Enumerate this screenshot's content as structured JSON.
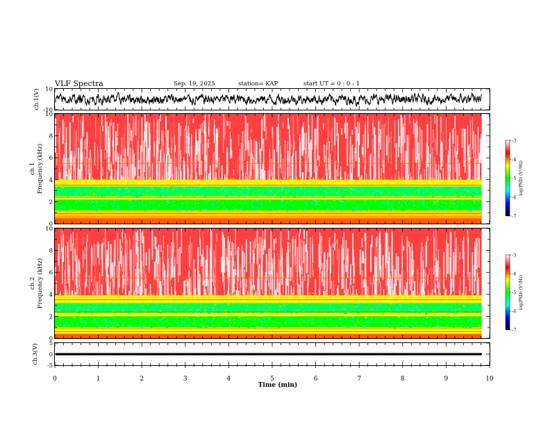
{
  "header": {
    "title": "VLF Spectra",
    "date": "Sep. 19, 2025",
    "station": "station= KAP",
    "start": "start  UT  =   0 : 0  : 1"
  },
  "chart_data": [
    {
      "type": "line",
      "name": "ch1-waveform",
      "ylabel": "ch.1(V)",
      "ylim": [
        -10,
        10
      ],
      "yticks": [
        {
          "v": 10,
          "label": "10"
        },
        {
          "v": -10,
          "label": "-10"
        }
      ],
      "xlim": [
        0,
        10
      ],
      "trace": {
        "center": 0.0,
        "amplitude": 5.0,
        "x_end_min": 9.82
      },
      "color": "#000000"
    },
    {
      "type": "heatmap",
      "name": "ch1-spectrogram",
      "ylabel": "ch.1\nFrequency (kHz)",
      "ylabel_lines": [
        "ch.1",
        "Frequency (kHz)"
      ],
      "ylim": [
        0,
        10
      ],
      "yticks": [
        0,
        2,
        4,
        6,
        8,
        10
      ],
      "xlim": [
        0,
        10
      ],
      "data_end_min": 9.82,
      "bands_kHz": [
        {
          "from": 0.0,
          "to": 0.5,
          "log_psd": -3.9
        },
        {
          "from": 0.5,
          "to": 1.2,
          "log_psd": -4.2
        },
        {
          "from": 1.2,
          "to": 2.2,
          "log_psd": -5.0
        },
        {
          "from": 2.2,
          "to": 2.5,
          "log_psd": -4.3
        },
        {
          "from": 2.5,
          "to": 3.4,
          "log_psd": -5.2
        },
        {
          "from": 3.4,
          "to": 4.0,
          "log_psd": -4.3
        },
        {
          "from": 4.0,
          "to": 10.0,
          "log_psd": -3.5
        }
      ]
    },
    {
      "type": "heatmap",
      "name": "ch2-spectrogram",
      "ylabel": "ch.2\nFrequency (kHz)",
      "ylabel_lines": [
        "ch.2",
        "Frequency (kHz)"
      ],
      "ylim": [
        0,
        10
      ],
      "yticks": [
        0,
        2,
        4,
        6,
        8,
        10
      ],
      "xlim": [
        0,
        10
      ],
      "data_end_min": 9.82,
      "bands_kHz": [
        {
          "from": 0.0,
          "to": 0.4,
          "log_psd": -3.9
        },
        {
          "from": 0.4,
          "to": 1.0,
          "log_psd": -4.3
        },
        {
          "from": 1.0,
          "to": 2.0,
          "log_psd": -5.0
        },
        {
          "from": 2.0,
          "to": 2.3,
          "log_psd": -4.3
        },
        {
          "from": 2.3,
          "to": 3.2,
          "log_psd": -5.2
        },
        {
          "from": 3.2,
          "to": 3.9,
          "log_psd": -4.3
        },
        {
          "from": 3.9,
          "to": 10.0,
          "log_psd": -3.5
        }
      ]
    },
    {
      "type": "line",
      "name": "ch3-waveform",
      "ylabel": "ch.3(V)",
      "ylim": [
        -5,
        5
      ],
      "yticks": [
        {
          "v": 5,
          "label": "5"
        },
        {
          "v": 0,
          "label": "0"
        },
        {
          "v": -5,
          "label": "-5"
        }
      ],
      "xlim": [
        0,
        10
      ],
      "trace": {
        "center": 0.0,
        "amplitude": 0.5,
        "x_end_min": 9.82
      },
      "color": "#000000"
    }
  ],
  "xaxis": {
    "label": "Time (min)",
    "ticks": [
      "0",
      "1",
      "2",
      "3",
      "4",
      "5",
      "6",
      "7",
      "8",
      "9",
      "10"
    ]
  },
  "colorbar": {
    "label": "log(PSD) (V²/Hz)",
    "range": [
      -7,
      -3
    ],
    "ticks": [
      "-3",
      "-4",
      "-5",
      "-6",
      "-7"
    ],
    "stops": [
      "#ffffff",
      "#ff0000",
      "#ffff00",
      "#00ff00",
      "#00ffff",
      "#0000ff",
      "#000000"
    ]
  }
}
